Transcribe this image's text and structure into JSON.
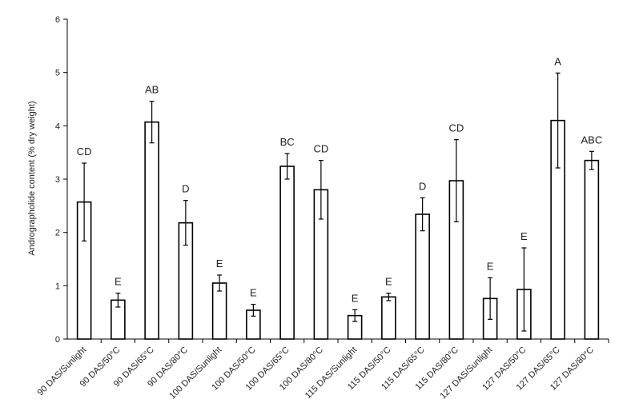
{
  "chart_data": {
    "type": "bar",
    "title": "",
    "xlabel": "",
    "ylabel": "Andrographolide content (% dry weight)",
    "ylim": [
      0,
      6
    ],
    "yticks": [
      0,
      1,
      2,
      3,
      4,
      5,
      6
    ],
    "grid": false,
    "legend": "none",
    "bar_fill": "#ffffff",
    "bar_stroke": "#000000",
    "categories": [
      "90 DAS/Sunlight",
      "90 DAS/50°C",
      "90 DAS/65°C",
      "90 DAS/80°C",
      "100 DAS/Sunlight",
      "100 DAS/50°C",
      "100 DAS/65°C",
      "100 DAS/80°C",
      "115 DAS/Sunlight",
      "115 DAS/50°C",
      "115 DAS/65°C",
      "115 DAS/80°C",
      "127 DAS/Sunlight",
      "127 DAS/50°C",
      "127 DAS/65°C",
      "127 DAS/80°C"
    ],
    "values": [
      2.57,
      0.73,
      4.07,
      2.18,
      1.05,
      0.54,
      3.24,
      2.8,
      0.44,
      0.79,
      2.34,
      2.97,
      0.76,
      0.93,
      4.1,
      3.35
    ],
    "error": [
      0.73,
      0.13,
      0.39,
      0.42,
      0.15,
      0.11,
      0.24,
      0.55,
      0.11,
      0.07,
      0.31,
      0.77,
      0.39,
      0.78,
      0.89,
      0.17
    ],
    "significance": [
      "CD",
      "E",
      "AB",
      "D",
      "E",
      "E",
      "BC",
      "CD",
      "E",
      "E",
      "D",
      "CD",
      "E",
      "E",
      "A",
      "ABC"
    ]
  }
}
